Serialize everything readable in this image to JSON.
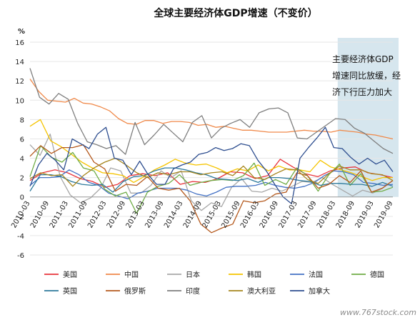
{
  "chart_data": {
    "type": "line",
    "title": "全球主要经济体GDP增速（不变价）",
    "y_unit": "%",
    "ylim": [
      -6,
      16
    ],
    "yticks": [
      -6,
      -4,
      -2,
      0,
      2,
      4,
      6,
      8,
      10,
      12,
      14,
      16
    ],
    "grid": "horizontal",
    "legend_position": "bottom",
    "x_labels": [
      "2010-03",
      "2010-09",
      "2011-03",
      "2011-09",
      "2012-03",
      "2012-09",
      "2013-03",
      "2013-09",
      "2014-03",
      "2014-09",
      "2015-03",
      "2015-09",
      "2016-03",
      "2016-09",
      "2017-03",
      "2017-09",
      "2018-03",
      "2018-09",
      "2019-03",
      "2019-09"
    ],
    "annotation": {
      "lines": [
        "主要经济体GDP",
        "增速同比放缓，经",
        "济下行压力加大"
      ],
      "highlight_range": [
        "2018-03",
        "2019-09"
      ],
      "highlight_color": "#d6e6ee"
    },
    "series": [
      {
        "name": "美国",
        "color": "#e8343c",
        "values": [
          1.7,
          2.5,
          2.8,
          2.5,
          1.9,
          1.6,
          1.0,
          1.3,
          2.2,
          2.4,
          2.2,
          2.5,
          1.3,
          1.6,
          1.5,
          1.9,
          2.6,
          2.5,
          1.9,
          2.2,
          3.9,
          3.1,
          2.4,
          2.1,
          2.7,
          3.0,
          3.1,
          2.5,
          2.3,
          2.0
        ]
      },
      {
        "name": "中国",
        "color": "#f08a4b",
        "values": [
          12.2,
          10.9,
          10.0,
          9.9,
          9.8,
          10.2,
          9.7,
          9.6,
          9.3,
          8.9,
          8.1,
          7.6,
          7.5,
          7.9,
          7.9,
          7.6,
          7.8,
          7.8,
          7.7,
          7.4,
          7.5,
          7.2,
          7.3,
          7.1,
          6.9,
          6.9,
          6.8,
          6.7,
          6.7,
          6.7,
          6.8,
          6.9,
          6.8,
          6.8,
          6.7,
          6.9,
          6.8,
          6.7,
          6.5,
          6.4,
          6.2,
          6.0
        ]
      },
      {
        "name": "日本",
        "color": "#a8a8a8",
        "values": [
          5.4,
          4.3,
          6.5,
          2.1,
          0.2,
          -0.6,
          -0.1,
          0.9,
          3.0,
          2.7,
          0.4,
          0.4,
          1.2,
          2.7,
          2.0,
          2.7,
          -0.4,
          -1.4,
          -0.6,
          -1.0,
          1.0,
          1.9,
          0.6,
          0.5,
          0.9,
          0.6,
          1.1,
          1.6,
          1.5,
          2.0,
          1.3,
          0.7,
          0.1,
          0.7,
          0.4,
          0.9,
          1.7
        ]
      },
      {
        "name": "韩国",
        "color": "#f5c400",
        "values": [
          7.3,
          8.0,
          5.8,
          5.2,
          4.4,
          3.6,
          3.0,
          2.5,
          2.4,
          2.2,
          1.5,
          2.1,
          2.8,
          3.3,
          3.9,
          3.5,
          3.3,
          3.4,
          3.0,
          2.5,
          2.9,
          2.7,
          3.3,
          2.7,
          3.2,
          2.8,
          2.8,
          2.6,
          3.8,
          3.1,
          2.8,
          2.5,
          2.1,
          1.7,
          2.0,
          2.0
        ]
      },
      {
        "name": "法国",
        "color": "#4472c4",
        "values": [
          1.2,
          2.0,
          2.0,
          2.1,
          2.8,
          2.3,
          1.5,
          1.2,
          0.4,
          0.1,
          -0.2,
          0.4,
          0.6,
          0.9,
          0.9,
          0.9,
          0.7,
          0.3,
          0.1,
          0.5,
          1.0,
          1.1,
          1.1,
          1.2,
          1.5,
          1.2,
          1.0,
          0.9,
          1.1,
          1.5,
          2.2,
          2.7,
          2.6,
          2.3,
          1.5,
          1.4,
          1.2,
          1.3
        ]
      },
      {
        "name": "德国",
        "color": "#70ad47",
        "values": [
          2.1,
          5.3,
          4.1,
          3.6,
          4.6,
          3.0,
          2.7,
          0.8,
          0.1,
          0.5,
          -1.7,
          0.5,
          1.1,
          1.4,
          2.3,
          1.2,
          1.5,
          1.7,
          1.8,
          1.7,
          2.2,
          3.5,
          1.2,
          1.8,
          1.3,
          3.0,
          2.2,
          0.6,
          2.3,
          3.4,
          1.2,
          2.4,
          0.5,
          0.6,
          1.0
        ]
      },
      {
        "name": "英国",
        "color": "#2e7a9c",
        "values": [
          0.6,
          2.3,
          2.3,
          2.1,
          1.6,
          1.3,
          1.2,
          1.3,
          0.5,
          1.6,
          2.1,
          2.2,
          2.7,
          3.0,
          3.0,
          2.8,
          2.5,
          2.3,
          1.9,
          1.8,
          1.7,
          1.9,
          1.5,
          2.0,
          2.0,
          1.9,
          1.7,
          1.6,
          1.2,
          1.4,
          1.4,
          1.3,
          1.3,
          1.1,
          1.5,
          1.1
        ]
      },
      {
        "name": "俄罗斯",
        "color": "#b55a1e",
        "values": [
          4.2,
          5.3,
          4.5,
          5.1,
          5.1,
          5.4,
          3.6,
          2.9,
          0.6,
          1.3,
          1.2,
          2.1,
          0.9,
          0.7,
          0.9,
          -0.4,
          -2.8,
          -3.7,
          -3.2,
          -2.8,
          -0.4,
          -0.6,
          -0.4,
          0.3,
          0.5,
          2.5,
          2.2,
          0.9,
          1.3,
          2.2,
          1.5,
          2.7,
          0.5,
          0.9,
          1.7
        ]
      },
      {
        "name": "印度",
        "color": "#7f7f7f",
        "values": [
          13.3,
          10.3,
          9.6,
          10.7,
          10.1,
          7.6,
          5.7,
          5.4,
          5.0,
          5.3,
          4.4,
          7.7,
          5.4,
          6.4,
          7.5,
          6.6,
          5.7,
          7.7,
          8.4,
          6.1,
          7.1,
          7.6,
          8.0,
          7.2,
          8.7,
          9.1,
          9.2,
          8.7,
          6.1,
          6.0,
          6.7,
          7.4,
          8.1,
          8.0,
          7.1,
          6.6,
          5.8,
          5.0,
          4.5
        ]
      },
      {
        "name": "澳大利亚",
        "color": "#a6861e",
        "values": [
          1.9,
          2.5,
          2.2,
          2.3,
          1.1,
          2.2,
          3.0,
          3.6,
          4.0,
          3.3,
          2.5,
          2.0,
          2.5,
          2.3,
          2.6,
          2.6,
          2.3,
          2.5,
          2.6,
          2.2,
          3.2,
          2.0,
          1.8,
          2.4,
          2.9,
          2.8,
          1.8,
          1.4,
          2.4,
          3.2,
          2.8,
          2.8,
          2.4,
          2.3,
          1.7
        ]
      },
      {
        "name": "加拿大",
        "color": "#2f4f90",
        "values": [
          1.1,
          3.3,
          4.5,
          3.8,
          2.8,
          6.0,
          5.5,
          5.0,
          6.5,
          7.2,
          4.0,
          3.8,
          2.3,
          3.7,
          2.3,
          1.3,
          1.3,
          2.9,
          3.3,
          3.6,
          4.4,
          4.6,
          5.1,
          4.8,
          5.0,
          5.5,
          5.3,
          3.8,
          2.7,
          1.3,
          0.0,
          -0.7,
          4.0,
          5.1,
          6.1,
          7.2,
          5.1,
          5.0,
          4.1,
          3.4,
          4.0,
          3.4,
          3.8,
          2.6
        ]
      }
    ]
  },
  "watermark": "www.767stock.com"
}
